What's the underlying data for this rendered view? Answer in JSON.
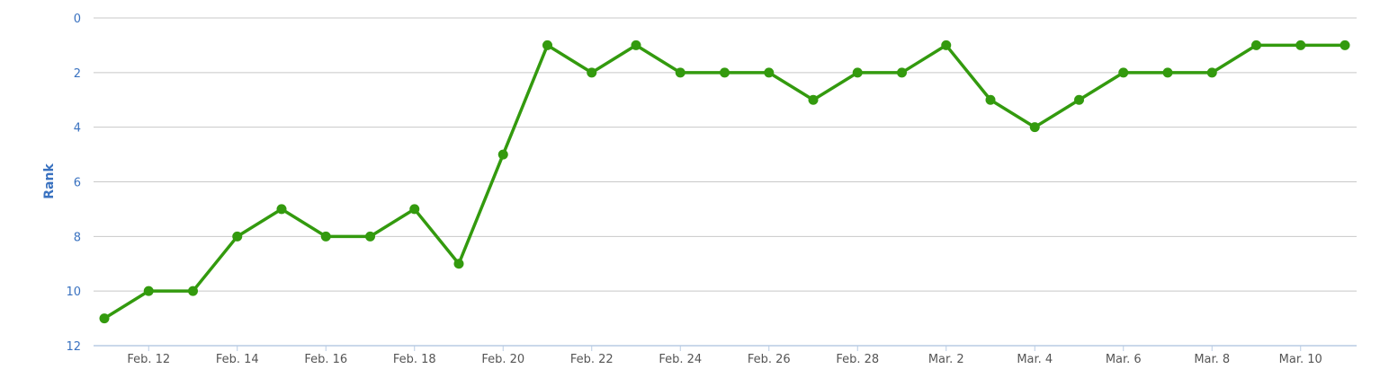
{
  "chart_data": {
    "type": "line",
    "ylabel": "Rank",
    "xlabel": "",
    "title": "",
    "y_reversed": true,
    "ylim": [
      0,
      12
    ],
    "yticks": [
      0,
      2,
      4,
      6,
      8,
      10,
      12
    ],
    "grid": true,
    "x": [
      "Feb. 11",
      "Feb. 12",
      "Feb. 13",
      "Feb. 14",
      "Feb. 15",
      "Feb. 16",
      "Feb. 17",
      "Feb. 18",
      "Feb. 19",
      "Feb. 20",
      "Feb. 21",
      "Feb. 22",
      "Feb. 23",
      "Feb. 24",
      "Feb. 25",
      "Feb. 26",
      "Feb. 27",
      "Feb. 28",
      "Mar. 1",
      "Mar. 2",
      "Mar. 3",
      "Mar. 4",
      "Mar. 5",
      "Mar. 6",
      "Mar. 7",
      "Mar. 8",
      "Mar. 9",
      "Mar. 10",
      "Mar. 11"
    ],
    "xtick_labels": [
      "Feb. 12",
      "Feb. 14",
      "Feb. 16",
      "Feb. 18",
      "Feb. 20",
      "Feb. 22",
      "Feb. 24",
      "Feb. 26",
      "Feb. 28",
      "Mar. 2",
      "Mar. 4",
      "Mar. 6",
      "Mar. 8",
      "Mar. 10"
    ],
    "series": [
      {
        "color": "#339a0e",
        "values": [
          11,
          10,
          10,
          8,
          7,
          8,
          8,
          7,
          9,
          5,
          1,
          2,
          1,
          2,
          2,
          2,
          3,
          2,
          2,
          1,
          3,
          4,
          3,
          2,
          2,
          2,
          1,
          1,
          1
        ]
      }
    ]
  }
}
